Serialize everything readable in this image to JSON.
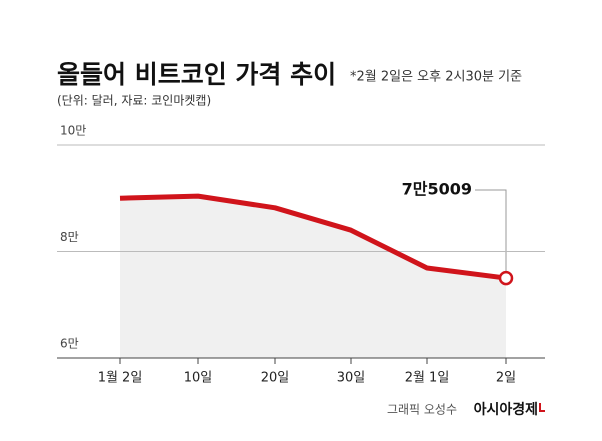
{
  "chart_data": {
    "type": "line",
    "title": "올들어 비트코인 가격 추이",
    "annotation": "*2월 2일은 오후 2시30분 기준",
    "subtitle": "(단위: 달러, 자료: 코인마켓캡)",
    "categories": [
      "1월 2일",
      "10일",
      "20일",
      "30일",
      "2월 1일",
      "2일"
    ],
    "values": [
      90000,
      90400,
      88200,
      84000,
      76900,
      75009
    ],
    "value_labels": [
      null,
      null,
      null,
      null,
      null,
      "7만5009"
    ],
    "color": "#d0141b",
    "ylim": [
      60000,
      100000
    ],
    "yticks": [
      {
        "value": 60000,
        "label": "6만"
      },
      {
        "value": 80000,
        "label": "8만"
      },
      {
        "value": 100000,
        "label": "10만"
      }
    ],
    "grid": true,
    "credit": "그래픽 오성수",
    "publisher": "아시아경제"
  }
}
